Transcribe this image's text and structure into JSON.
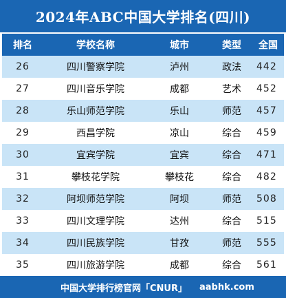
{
  "title": "2024年ABC中国大学排名(四川)",
  "header": {
    "rank": "排名",
    "name": "学校名称",
    "city": "城市",
    "type": "类型",
    "score": "全国"
  },
  "rows": [
    {
      "rank": "26",
      "name": "四川警察学院",
      "city": "泸州",
      "type": "政法",
      "score": "442"
    },
    {
      "rank": "27",
      "name": "四川音乐学院",
      "city": "成都",
      "type": "艺术",
      "score": "452"
    },
    {
      "rank": "28",
      "name": "乐山师范学院",
      "city": "乐山",
      "type": "师范",
      "score": "457"
    },
    {
      "rank": "29",
      "name": "西昌学院",
      "city": "凉山",
      "type": "综合",
      "score": "459"
    },
    {
      "rank": "30",
      "name": "宜宾学院",
      "city": "宜宾",
      "type": "综合",
      "score": "471"
    },
    {
      "rank": "31",
      "name": "攀枝花学院",
      "city": "攀枝花",
      "type": "综合",
      "score": "482"
    },
    {
      "rank": "32",
      "name": "阿坝师范学院",
      "city": "阿坝",
      "type": "师范",
      "score": "508"
    },
    {
      "rank": "33",
      "name": "四川文理学院",
      "city": "达州",
      "type": "综合",
      "score": "515"
    },
    {
      "rank": "34",
      "name": "四川民族学院",
      "city": "甘孜",
      "type": "师范",
      "score": "555"
    },
    {
      "rank": "35",
      "name": "四川旅游学院",
      "city": "成都",
      "type": "综合",
      "score": "561"
    }
  ],
  "footer": {
    "source": "中国大学排行榜官网「CNUR」",
    "site": "aabhk.com"
  },
  "colors": {
    "header_blue": "#1a66b3",
    "band_blue": "#c9e4f7"
  }
}
